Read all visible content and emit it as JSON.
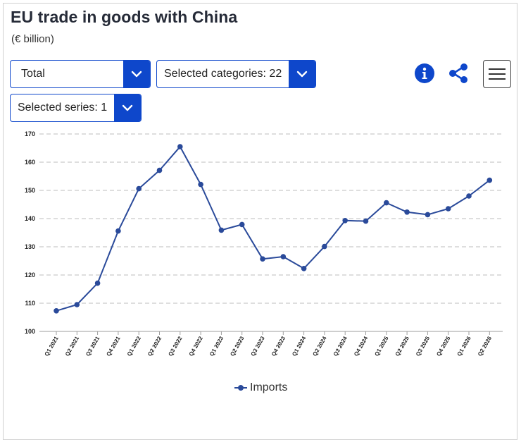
{
  "header": {
    "title": "EU trade in goods with China",
    "subtitle": "(€ billion)"
  },
  "controls": {
    "flow_select": "Total",
    "categories_select": "Selected categories: 22",
    "series_select": "Selected series: 1",
    "info_icon": "info-icon",
    "share_icon": "share-icon",
    "menu_icon": "hamburger-menu-icon"
  },
  "colors": {
    "accent": "#0e47cb",
    "series": "#2a4a9a",
    "grid": "#bdbdbd"
  },
  "chart_data": {
    "type": "line",
    "title": "EU trade in goods with China",
    "subtitle": "(€ billion)",
    "xlabel": "",
    "ylabel": "",
    "ylim": [
      100,
      170
    ],
    "yticks": [
      100,
      110,
      120,
      130,
      140,
      150,
      160,
      170
    ],
    "grid": true,
    "legend": "bottom-center",
    "categories": [
      "Q1 2021",
      "Q2 2021",
      "Q3 2021",
      "Q4 2021",
      "Q1 2022",
      "Q2 2022",
      "Q3 2022",
      "Q4 2022",
      "Q1 2023",
      "Q2 2023",
      "Q3 2023",
      "Q4 2023",
      "Q1 2024",
      "Q2 2024",
      "Q3 2024",
      "Q4 2024",
      "Q1 2025",
      "Q2 2025",
      "Q3 2025",
      "Q4 2025",
      "Q1 2026",
      "Q2 2026"
    ],
    "series": [
      {
        "name": "Imports",
        "color": "#2a4a9a",
        "values": [
          107.3,
          109.5,
          117.1,
          135.6,
          150.6,
          157.1,
          165.5,
          152.1,
          135.9,
          137.9,
          125.7,
          126.5,
          122.3,
          130.1,
          139.3,
          139.1,
          145.6,
          142.3,
          141.4,
          143.5,
          148.0,
          153.6
        ]
      }
    ]
  }
}
